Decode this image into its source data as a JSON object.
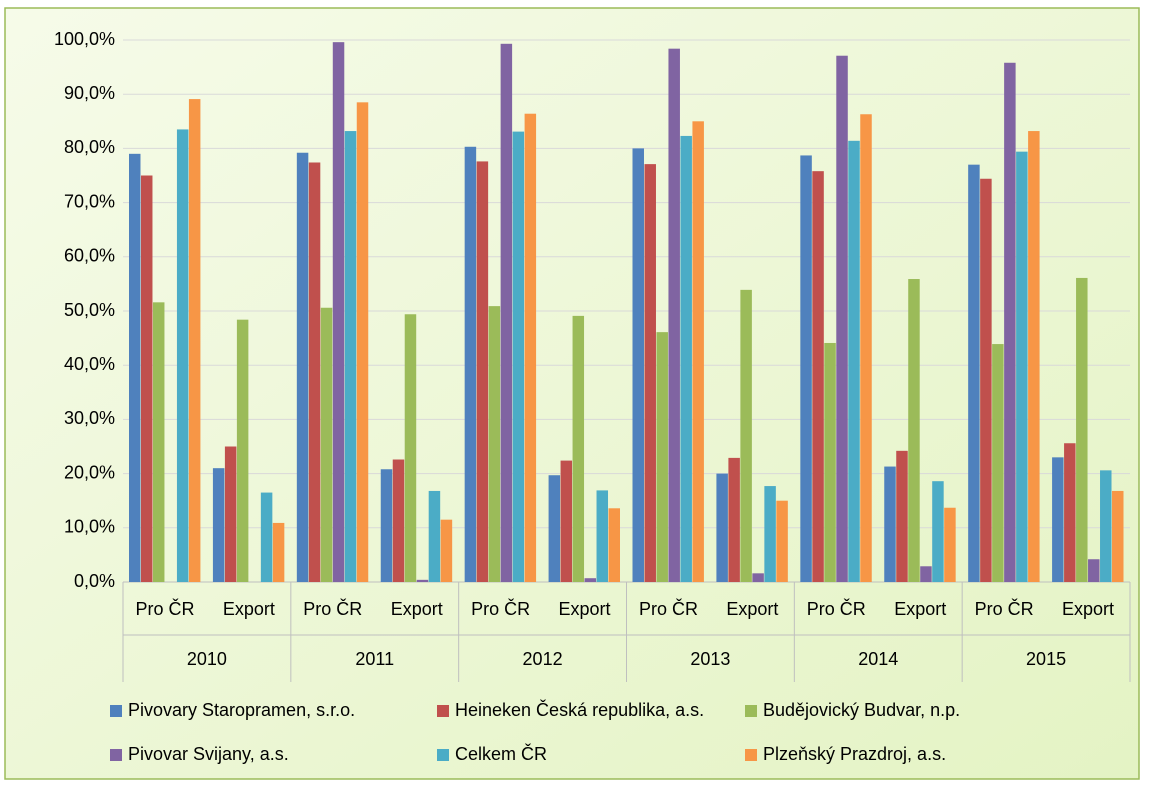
{
  "chart_data": {
    "type": "bar",
    "categories": [
      "Pro ČR",
      "Export",
      "Pro ČR",
      "Export",
      "Pro ČR",
      "Export",
      "Pro ČR",
      "Export",
      "Pro ČR",
      "Export",
      "Pro ČR",
      "Export"
    ],
    "category_groups": [
      "2010",
      "2011",
      "2012",
      "2013",
      "2014",
      "2015"
    ],
    "series": [
      {
        "name": "Pivovary Staropramen, s.r.o.",
        "color": "#4f81bd",
        "values": [
          79.0,
          21.0,
          79.2,
          20.8,
          80.3,
          19.7,
          80.0,
          20.0,
          78.7,
          21.3,
          77.0,
          23.0
        ]
      },
      {
        "name": "Heineken Česká republika, a.s.",
        "color": "#c0504d",
        "values": [
          75.0,
          25.0,
          77.4,
          22.6,
          77.6,
          22.4,
          77.1,
          22.9,
          75.8,
          24.2,
          74.4,
          25.6
        ]
      },
      {
        "name": "Budějovický Budvar, n.p.",
        "color": "#9bbb59",
        "values": [
          51.6,
          48.4,
          50.6,
          49.4,
          50.9,
          49.1,
          46.1,
          53.9,
          44.1,
          55.9,
          43.9,
          56.1
        ]
      },
      {
        "name": "Pivovar Svijany, a.s.",
        "color": "#8064a2",
        "values": [
          null,
          null,
          99.6,
          0.4,
          99.3,
          0.7,
          98.4,
          1.6,
          97.1,
          2.9,
          95.8,
          4.2
        ]
      },
      {
        "name": "Celkem ČR",
        "color": "#4bacc6",
        "values": [
          83.5,
          16.5,
          83.2,
          16.8,
          83.1,
          16.9,
          82.3,
          17.7,
          81.4,
          18.6,
          79.4,
          20.6
        ]
      },
      {
        "name": "Plzeňský Prazdroj, a.s.",
        "color": "#f79646",
        "values": [
          89.1,
          10.9,
          88.5,
          11.5,
          86.4,
          13.6,
          85.0,
          15.0,
          86.3,
          13.7,
          83.2,
          16.8
        ]
      }
    ],
    "ylim": [
      0,
      100
    ],
    "yticks": [
      {
        "value": 0,
        "label": "0,0%"
      },
      {
        "value": 10,
        "label": "10,0%"
      },
      {
        "value": 20,
        "label": "20,0%"
      },
      {
        "value": 30,
        "label": "30,0%"
      },
      {
        "value": 40,
        "label": "40,0%"
      },
      {
        "value": 50,
        "label": "50,0%"
      },
      {
        "value": 60,
        "label": "60,0%"
      },
      {
        "value": 70,
        "label": "70,0%"
      },
      {
        "value": 80,
        "label": "80,0%"
      },
      {
        "value": 90,
        "label": "90,0%"
      },
      {
        "value": 100,
        "label": "100,0%"
      }
    ],
    "grid": true,
    "legend": "bottom"
  }
}
